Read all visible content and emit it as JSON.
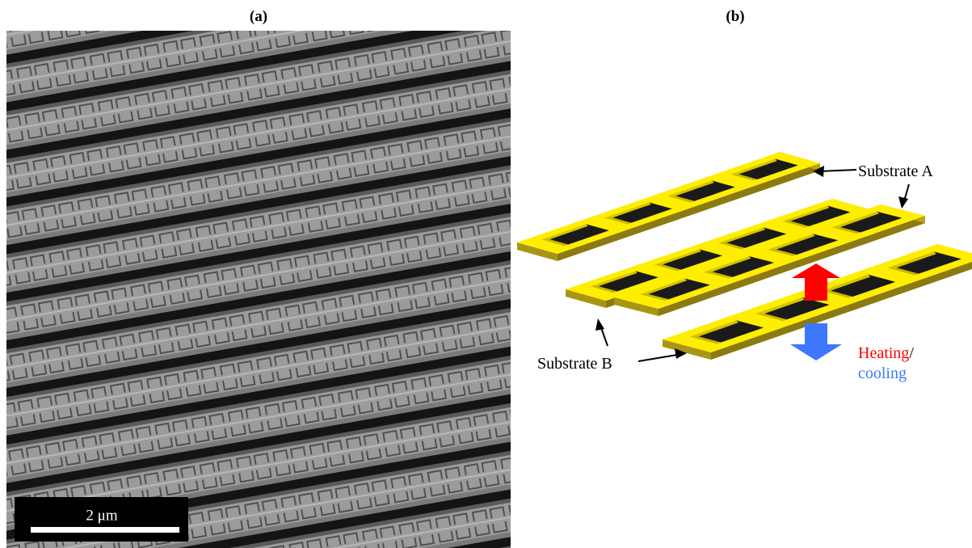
{
  "panel_a": {
    "label": "(a)",
    "scale_bar": "2 μm"
  },
  "panel_b": {
    "label": "(b)",
    "substrate_a": "Substrate A",
    "substrate_b": "Substrate B",
    "heating": "Heating",
    "separator": "/",
    "cooling": "cooling"
  }
}
